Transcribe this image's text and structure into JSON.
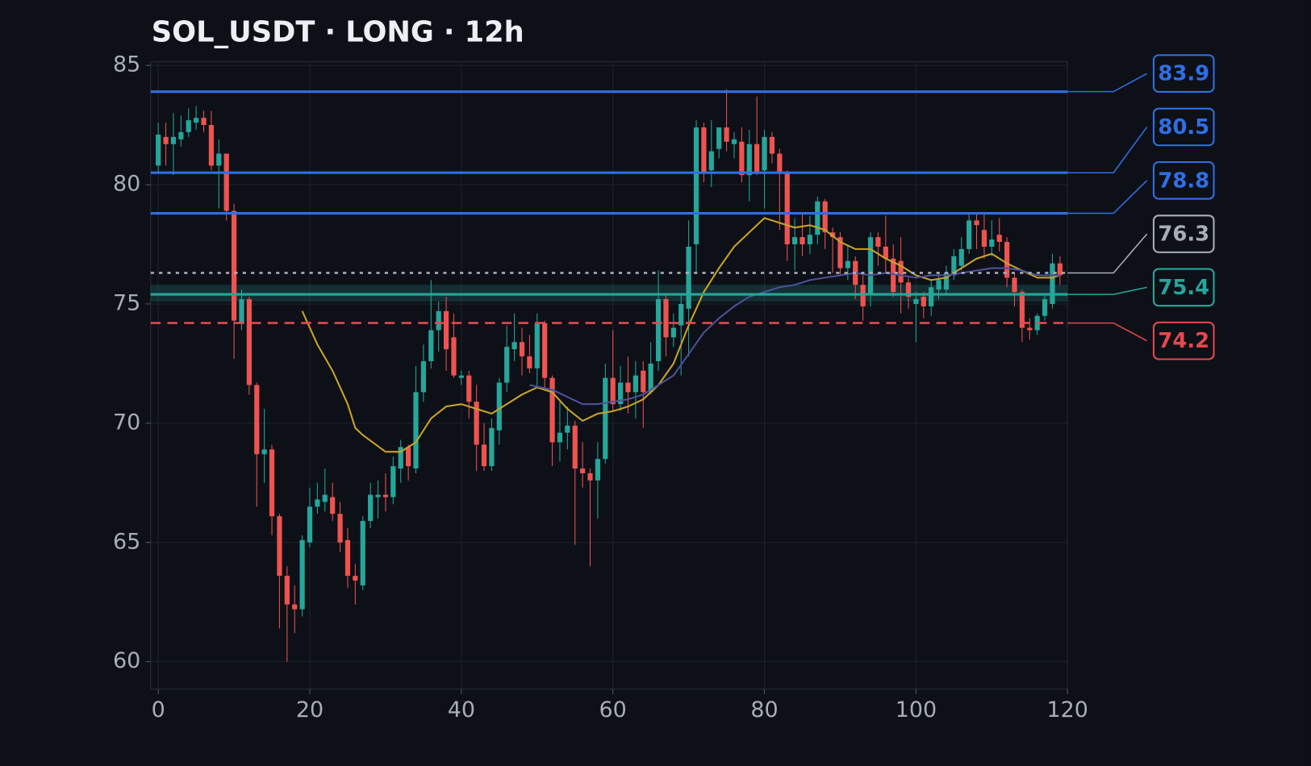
{
  "chart_data": {
    "type": "candlestick",
    "title": "SOL_USDT · LONG · 12h",
    "x": [
      0,
      1,
      2,
      3,
      4,
      5,
      6,
      7,
      8,
      9,
      10,
      11,
      12,
      13,
      14,
      15,
      16,
      17,
      18,
      19,
      20,
      21,
      22,
      23,
      24,
      25,
      26,
      27,
      28,
      29,
      30,
      31,
      32,
      33,
      34,
      35,
      36,
      37,
      38,
      39,
      40,
      41,
      42,
      43,
      44,
      45,
      46,
      47,
      48,
      49,
      50,
      51,
      52,
      53,
      54,
      55,
      56,
      57,
      58,
      59,
      60,
      61,
      62,
      63,
      64,
      65,
      66,
      67,
      68,
      69,
      70,
      71,
      72,
      73,
      74,
      75,
      76,
      77,
      78,
      79,
      80,
      81,
      82,
      83,
      84,
      85,
      86,
      87,
      88,
      89,
      90,
      91,
      92,
      93,
      94,
      95,
      96,
      97,
      98,
      99,
      100,
      101,
      102,
      103,
      104,
      105,
      106,
      107,
      108,
      109,
      110,
      111,
      112,
      113,
      114,
      115,
      116,
      117,
      118,
      119
    ],
    "open": [
      80.8,
      82.0,
      81.7,
      81.9,
      82.2,
      82.6,
      82.8,
      82.5,
      80.8,
      81.3,
      78.9,
      74.2,
      75.2,
      71.6,
      68.7,
      68.9,
      66.1,
      63.6,
      62.4,
      62.2,
      65.0,
      66.5,
      66.7,
      66.9,
      66.2,
      65.1,
      63.6,
      63.2,
      65.9,
      66.9,
      67.0,
      66.9,
      68.1,
      69.0,
      68.1,
      71.3,
      72.6,
      73.9,
      74.7,
      73.6,
      71.9,
      72.0,
      70.9,
      69.1,
      68.2,
      69.7,
      71.7,
      73.1,
      73.4,
      72.8,
      72.3,
      74.2,
      71.9,
      69.2,
      69.6,
      69.9,
      68.1,
      67.9,
      67.6,
      68.5,
      71.9,
      70.8,
      71.7,
      71.3,
      72.2,
      71.3,
      72.6,
      75.2,
      73.6,
      74.1,
      74.8,
      77.5,
      82.4,
      80.6,
      81.5,
      82.4,
      81.7,
      81.8,
      80.4,
      81.7,
      80.6,
      82.0,
      81.3,
      80.5,
      77.5,
      77.8,
      77.5,
      77.9,
      79.3,
      78.0,
      77.8,
      76.5,
      76.8,
      75.8,
      75.4,
      77.8,
      77.4,
      76.9,
      76.8,
      75.9,
      75.0,
      75.3,
      74.9,
      75.6,
      75.6,
      76.2,
      76.6,
      77.3,
      78.5,
      78.1,
      77.4,
      77.9,
      77.6,
      76.1,
      75.5,
      74.0,
      73.9,
      74.5,
      75.0,
      76.7
    ],
    "high": [
      82.6,
      82.6,
      83.0,
      82.9,
      83.2,
      83.3,
      83.1,
      83.1,
      81.9,
      81.3,
      79.2,
      75.6,
      75.3,
      71.7,
      70.6,
      69.1,
      66.2,
      64.0,
      63.2,
      65.3,
      67.3,
      67.5,
      68.1,
      67.5,
      66.7,
      65.6,
      64.1,
      66.1,
      67.5,
      67.6,
      67.9,
      68.6,
      69.3,
      69.1,
      72.4,
      73.3,
      76.0,
      75.1,
      75.3,
      74.6,
      72.2,
      72.2,
      71.6,
      70.0,
      70.2,
      71.9,
      74.1,
      74.6,
      74.0,
      73.7,
      74.6,
      74.3,
      72.0,
      70.9,
      70.7,
      70.1,
      69.2,
      68.1,
      69.2,
      72.5,
      73.9,
      72.4,
      72.8,
      72.6,
      72.6,
      73.4,
      76.4,
      75.4,
      74.6,
      75.4,
      78.5,
      82.7,
      82.6,
      82.7,
      82.4,
      84.0,
      82.2,
      82.4,
      82.3,
      83.7,
      82.3,
      82.2,
      81.5,
      80.6,
      78.6,
      78.8,
      78.7,
      79.5,
      79.4,
      78.2,
      78.0,
      77.5,
      77.0,
      76.2,
      78.0,
      78.0,
      78.7,
      77.5,
      77.8,
      76.1,
      75.5,
      75.5,
      76.0,
      76.3,
      76.6,
      77.3,
      77.8,
      78.8,
      78.8,
      78.8,
      78.5,
      78.6,
      77.8,
      76.3,
      75.6,
      74.4,
      74.6,
      75.4,
      77.1,
      77.0
    ],
    "low": [
      80.5,
      80.8,
      80.4,
      81.6,
      82.0,
      82.3,
      82.2,
      80.6,
      79.0,
      78.5,
      72.7,
      73.9,
      71.2,
      66.5,
      67.5,
      65.3,
      61.4,
      60.0,
      61.2,
      61.9,
      64.8,
      66.2,
      66.3,
      65.9,
      64.6,
      63.1,
      62.4,
      63.0,
      65.6,
      66.0,
      66.3,
      66.6,
      67.5,
      67.6,
      67.9,
      70.9,
      72.3,
      73.0,
      72.2,
      71.9,
      71.6,
      70.2,
      68.0,
      68.0,
      68.0,
      69.1,
      71.3,
      72.6,
      72.0,
      72.1,
      71.5,
      71.4,
      68.2,
      68.4,
      68.9,
      64.9,
      67.3,
      64.0,
      66.0,
      68.3,
      70.5,
      70.5,
      70.4,
      70.2,
      69.8,
      71.2,
      72.2,
      72.8,
      73.2,
      72.0,
      72.8,
      76.3,
      80.1,
      79.9,
      81.1,
      81.4,
      81.1,
      80.1,
      79.3,
      80.4,
      79.0,
      80.9,
      78.1,
      76.8,
      76.4,
      77.0,
      77.1,
      77.5,
      77.3,
      76.3,
      76.2,
      76.0,
      75.2,
      74.3,
      74.9,
      76.6,
      76.3,
      75.3,
      74.6,
      74.8,
      73.4,
      74.4,
      74.5,
      75.2,
      75.4,
      76.0,
      76.4,
      77.1,
      77.3,
      76.9,
      77.0,
      77.2,
      75.7,
      74.9,
      73.4,
      73.5,
      73.7,
      74.3,
      74.8,
      75.8
    ],
    "close": [
      82.1,
      81.7,
      82.0,
      82.2,
      82.7,
      82.8,
      82.5,
      80.8,
      81.3,
      78.9,
      74.3,
      75.2,
      71.6,
      68.7,
      68.9,
      66.1,
      63.6,
      62.4,
      62.2,
      65.1,
      66.5,
      66.8,
      67.0,
      66.2,
      65.0,
      63.6,
      63.4,
      65.9,
      67.0,
      67.0,
      66.9,
      68.2,
      69.0,
      68.2,
      71.3,
      72.6,
      73.9,
      74.7,
      73.1,
      72.0,
      72.0,
      70.9,
      69.1,
      68.2,
      69.8,
      71.7,
      73.2,
      73.4,
      72.8,
      72.3,
      74.2,
      71.9,
      69.2,
      69.6,
      69.9,
      68.1,
      67.9,
      67.6,
      68.5,
      71.9,
      70.8,
      71.7,
      71.3,
      72.0,
      71.3,
      72.5,
      75.2,
      73.6,
      74.0,
      75.0,
      77.4,
      82.4,
      80.5,
      81.4,
      82.4,
      81.8,
      81.9,
      80.4,
      81.7,
      80.5,
      82.0,
      81.3,
      80.5,
      77.5,
      77.8,
      77.5,
      77.9,
      79.3,
      78.0,
      77.8,
      76.5,
      76.8,
      75.8,
      74.9,
      77.8,
      77.4,
      76.9,
      75.5,
      75.9,
      75.3,
      75.2,
      74.9,
      75.7,
      76.0,
      76.3,
      77.0,
      77.3,
      78.5,
      78.3,
      77.4,
      77.7,
      77.6,
      76.1,
      75.5,
      74.0,
      73.9,
      74.5,
      75.2,
      76.7,
      76.2
    ],
    "up_color": "#26a69a",
    "down_color": "#ef5350",
    "lines": [
      {
        "color": "#c9a227",
        "x": [
          19,
          21,
          23,
          25,
          26,
          27,
          30,
          32,
          34,
          36,
          38,
          40,
          42,
          44,
          46,
          48,
          50,
          52,
          54,
          56,
          58,
          60,
          62,
          64,
          66,
          68,
          70,
          72,
          74,
          76,
          78,
          80,
          82,
          84,
          86,
          88,
          90,
          92,
          94,
          96,
          98,
          100,
          102,
          104,
          106,
          108,
          110,
          112,
          114,
          116,
          118,
          119
        ],
        "values": [
          74.7,
          73.3,
          72.2,
          70.8,
          69.8,
          69.5,
          68.8,
          68.8,
          69.2,
          70.2,
          70.7,
          70.8,
          70.6,
          70.4,
          70.8,
          71.2,
          71.5,
          71.3,
          70.6,
          70.1,
          70.4,
          70.5,
          70.7,
          71.0,
          71.6,
          72.5,
          74.1,
          75.5,
          76.5,
          77.4,
          78.0,
          78.6,
          78.4,
          78.2,
          78.3,
          78.1,
          77.6,
          77.3,
          77.3,
          76.9,
          76.6,
          76.2,
          76.0,
          76.1,
          76.5,
          76.9,
          77.1,
          76.7,
          76.4,
          76.1,
          76.1,
          76.2
        ]
      },
      {
        "color": "#4b5199",
        "x": [
          49,
          52,
          54,
          56,
          58,
          60,
          62,
          64,
          66,
          68,
          70,
          72,
          74,
          76,
          78,
          80,
          82,
          84,
          86,
          88,
          90,
          92,
          94,
          96,
          98,
          100,
          102,
          104,
          106,
          108,
          110,
          112,
          114,
          116,
          118,
          119
        ],
        "values": [
          71.6,
          71.4,
          71.1,
          70.8,
          70.8,
          70.9,
          71.0,
          71.2,
          71.6,
          72.0,
          72.9,
          73.8,
          74.4,
          74.9,
          75.3,
          75.5,
          75.7,
          75.8,
          76.0,
          76.1,
          76.2,
          76.3,
          76.2,
          76.3,
          76.2,
          76.1,
          76.2,
          76.2,
          76.3,
          76.4,
          76.5,
          76.5,
          76.4,
          76.2,
          76.2,
          76.2
        ]
      }
    ],
    "levels": [
      {
        "value": 83.9,
        "color": "#2f6fe6",
        "style": "solid"
      },
      {
        "value": 80.5,
        "color": "#2f6fe6",
        "style": "solid"
      },
      {
        "value": 78.8,
        "color": "#2f6fe6",
        "style": "solid"
      },
      {
        "value": 76.3,
        "color": "#a9adb5",
        "style": "dotted"
      },
      {
        "value": 75.4,
        "color": "#26a69a",
        "style": "solid",
        "band": [
          75.1,
          75.8
        ]
      },
      {
        "value": 74.2,
        "color": "#e5484d",
        "style": "dashed"
      }
    ],
    "xlim": [
      -1,
      120
    ],
    "ylim": [
      58.85,
      85.15
    ],
    "xticks": [
      0,
      20,
      40,
      60,
      80,
      100,
      120
    ],
    "yticks": [
      60,
      65,
      70,
      75,
      80,
      85
    ],
    "grid": true
  }
}
